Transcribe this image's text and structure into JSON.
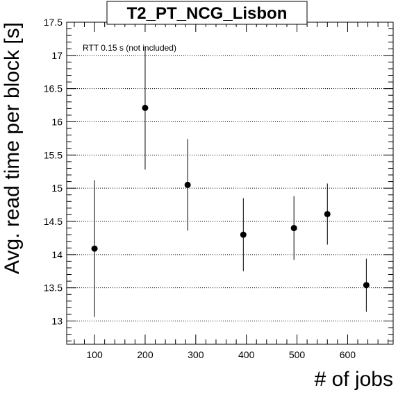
{
  "chart_data": {
    "type": "scatter",
    "title": "T2_PT_NCG_Lisbon",
    "xlabel": "# of jobs",
    "ylabel": "Avg. read time per block [s]",
    "annotation": "RTT 0.15 s (not included)",
    "xlim": [
      45,
      690
    ],
    "ylim": [
      12.65,
      17.5
    ],
    "xticks": [
      100,
      200,
      300,
      400,
      500,
      600
    ],
    "yticks": [
      13,
      13.5,
      14,
      14.5,
      15,
      15.5,
      16,
      16.5,
      17,
      17.5
    ],
    "xtick_labels": [
      "100",
      "200",
      "300",
      "400",
      "500",
      "600"
    ],
    "ytick_labels": [
      "13",
      "13.5",
      "14",
      "14.5",
      "15",
      "15.5",
      "16",
      "16.5",
      "17",
      "17.5"
    ],
    "grid": true,
    "points": [
      {
        "x": 100,
        "y": 14.09,
        "err": 1.03
      },
      {
        "x": 200,
        "y": 16.21,
        "err": 0.93
      },
      {
        "x": 284,
        "y": 15.05,
        "err": 0.69
      },
      {
        "x": 394,
        "y": 14.3,
        "err": 0.55
      },
      {
        "x": 494,
        "y": 14.4,
        "err": 0.48
      },
      {
        "x": 560,
        "y": 14.61,
        "err": 0.46
      },
      {
        "x": 637,
        "y": 13.54,
        "err": 0.4
      }
    ]
  }
}
